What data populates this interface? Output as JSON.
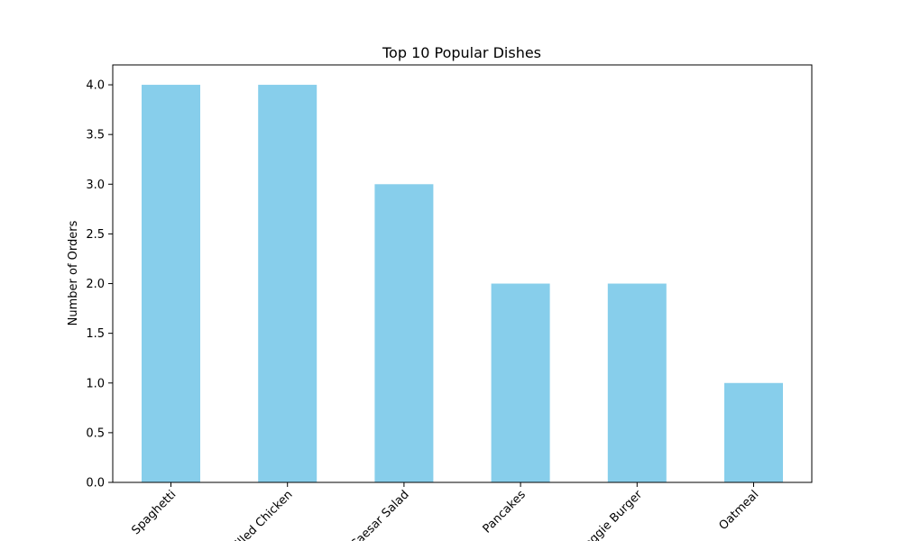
{
  "chart_data": {
    "type": "bar",
    "title": "Top 10 Popular Dishes",
    "xlabel": "",
    "ylabel": "Number of Orders",
    "categories": [
      "Spaghetti",
      "Grilled Chicken",
      "Caesar Salad",
      "Pancakes",
      "Veggie Burger",
      "Oatmeal"
    ],
    "values": [
      4,
      4,
      3,
      2,
      2,
      1
    ],
    "ylim": [
      0,
      4.2
    ],
    "yticks": [
      "0.0",
      "0.5",
      "1.0",
      "1.5",
      "2.0",
      "2.5",
      "3.0",
      "3.5",
      "4.0"
    ],
    "grid": false,
    "bar_color": "#87ceeb"
  }
}
